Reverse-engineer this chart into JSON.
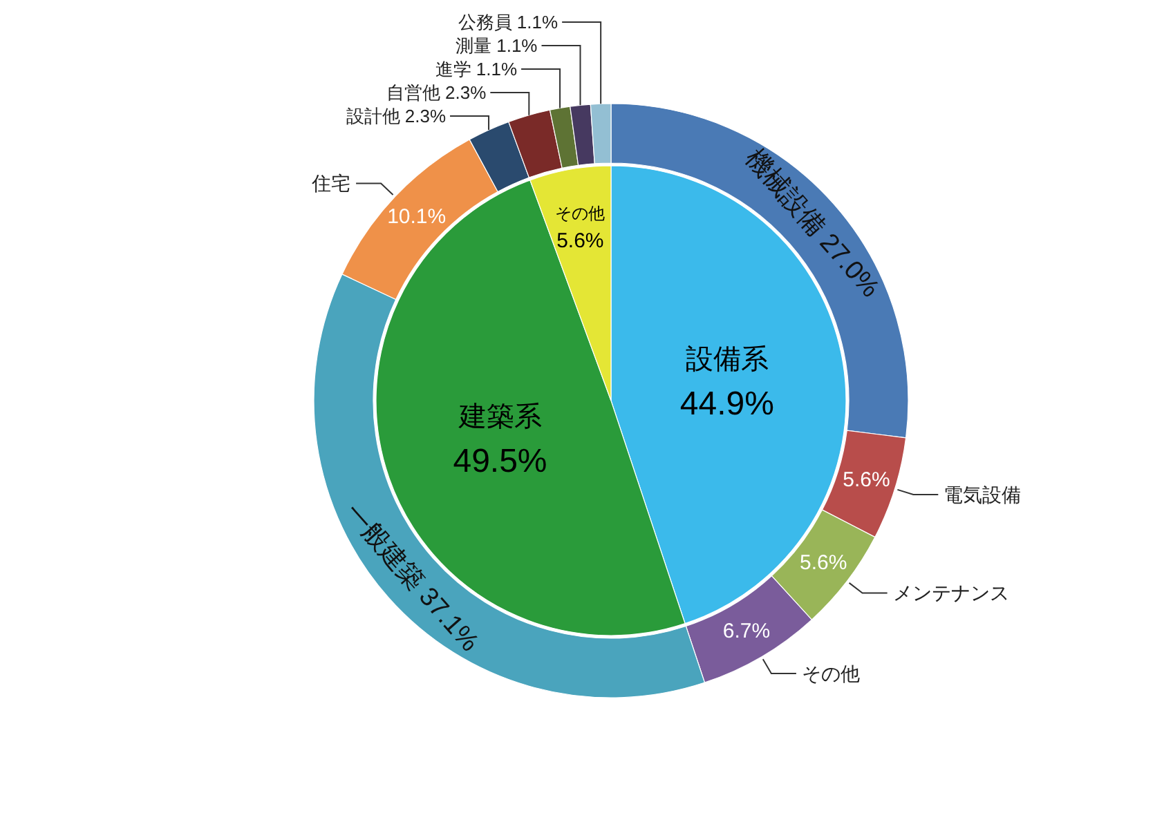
{
  "chart_data": [
    {
      "type": "pie",
      "categories": [
        "設備系",
        "建築系",
        "その他"
      ],
      "values": [
        44.9,
        49.5,
        5.6
      ],
      "colors": [
        "#3bbaeb",
        "#2a9b3a",
        "#e4e635"
      ],
      "value_labels": [
        "44.9%",
        "49.5%",
        "5.6%"
      ]
    },
    {
      "type": "donut",
      "categories": [
        "機械設備",
        "電気設備",
        "メンテナンス",
        "その他",
        "一般建築",
        "住宅",
        "設計他",
        "自営他",
        "進学",
        "測量",
        "公務員"
      ],
      "values": [
        27.0,
        5.6,
        5.6,
        6.7,
        37.1,
        10.1,
        2.3,
        2.3,
        1.1,
        1.1,
        1.1
      ],
      "colors": [
        "#4a7ab5",
        "#b84d4b",
        "#99b558",
        "#7a5c9b",
        "#4aa4bd",
        "#ef9149",
        "#2a4a6e",
        "#7a2a28",
        "#5e7334",
        "#463960",
        "#93bfd3"
      ],
      "value_labels": [
        "27.0%",
        "5.6%",
        "5.6%",
        "6.7%",
        "37.1%",
        "10.1%",
        "2.3%",
        "2.3%",
        "1.1%",
        "1.1%",
        "1.1%"
      ]
    }
  ]
}
